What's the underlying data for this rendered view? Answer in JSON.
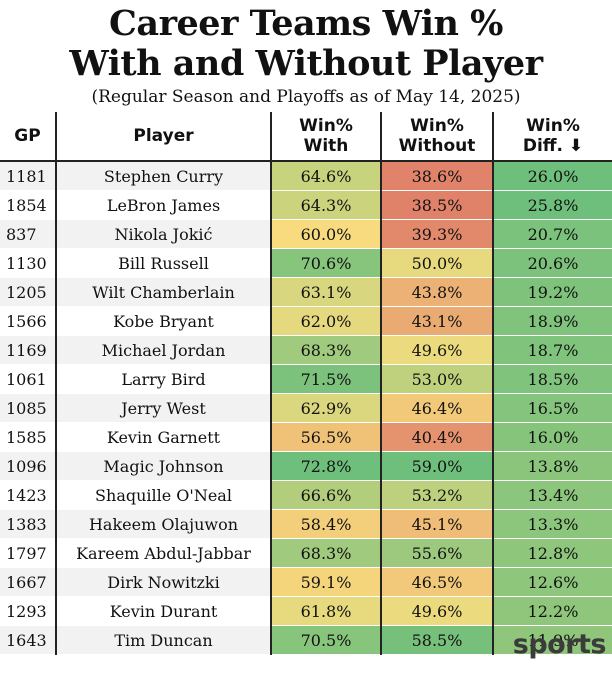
{
  "header": {
    "title_line1": "Career Teams Win %",
    "title_line2": "With and Without Player",
    "subtitle": "(Regular Season and Playoffs as of May 14, 2025)"
  },
  "columns": {
    "gp": "GP",
    "player": "Player",
    "with_l1": "Win%",
    "with_l2": "With",
    "without_l1": "Win%",
    "without_l2": "Without",
    "diff_l1": "Win%",
    "diff_l2": "Diff. ⬇"
  },
  "rows": [
    {
      "gp": "1181",
      "player": "Stephen Curry",
      "with": "64.6%",
      "without": "38.6%",
      "diff": "26.0%"
    },
    {
      "gp": "1854",
      "player": "LeBron James",
      "with": "64.3%",
      "without": "38.5%",
      "diff": "25.8%"
    },
    {
      "gp": "837",
      "player": "Nikola Jokić",
      "with": "60.0%",
      "without": "39.3%",
      "diff": "20.7%"
    },
    {
      "gp": "1130",
      "player": "Bill Russell",
      "with": "70.6%",
      "without": "50.0%",
      "diff": "20.6%"
    },
    {
      "gp": "1205",
      "player": "Wilt Chamberlain",
      "with": "63.1%",
      "without": "43.8%",
      "diff": "19.2%"
    },
    {
      "gp": "1566",
      "player": "Kobe Bryant",
      "with": "62.0%",
      "without": "43.1%",
      "diff": "18.9%"
    },
    {
      "gp": "1169",
      "player": "Michael Jordan",
      "with": "68.3%",
      "without": "49.6%",
      "diff": "18.7%"
    },
    {
      "gp": "1061",
      "player": "Larry Bird",
      "with": "71.5%",
      "without": "53.0%",
      "diff": "18.5%"
    },
    {
      "gp": "1085",
      "player": "Jerry West",
      "with": "62.9%",
      "without": "46.4%",
      "diff": "16.5%"
    },
    {
      "gp": "1585",
      "player": "Kevin Garnett",
      "with": "56.5%",
      "without": "40.4%",
      "diff": "16.0%"
    },
    {
      "gp": "1096",
      "player": "Magic Johnson",
      "with": "72.8%",
      "without": "59.0%",
      "diff": "13.8%"
    },
    {
      "gp": "1423",
      "player": "Shaquille O'Neal",
      "with": "66.6%",
      "without": "53.2%",
      "diff": "13.4%"
    },
    {
      "gp": "1383",
      "player": "Hakeem Olajuwon",
      "with": "58.4%",
      "without": "45.1%",
      "diff": "13.3%"
    },
    {
      "gp": "1797",
      "player": "Kareem Abdul-Jabbar",
      "with": "68.3%",
      "without": "55.6%",
      "diff": "12.8%"
    },
    {
      "gp": "1667",
      "player": "Dirk Nowitzki",
      "with": "59.1%",
      "without": "46.5%",
      "diff": "12.6%"
    },
    {
      "gp": "1293",
      "player": "Kevin Durant",
      "with": "61.8%",
      "without": "49.6%",
      "diff": "12.2%"
    },
    {
      "gp": "1643",
      "player": "Tim Duncan",
      "with": "70.5%",
      "without": "58.5%",
      "diff": "11.9%"
    }
  ],
  "colors": {
    "scale_low": "#e0826a",
    "scale_mid": "#f7dd7e",
    "scale_high": "#6fbf7c"
  },
  "watermark": "sports"
}
